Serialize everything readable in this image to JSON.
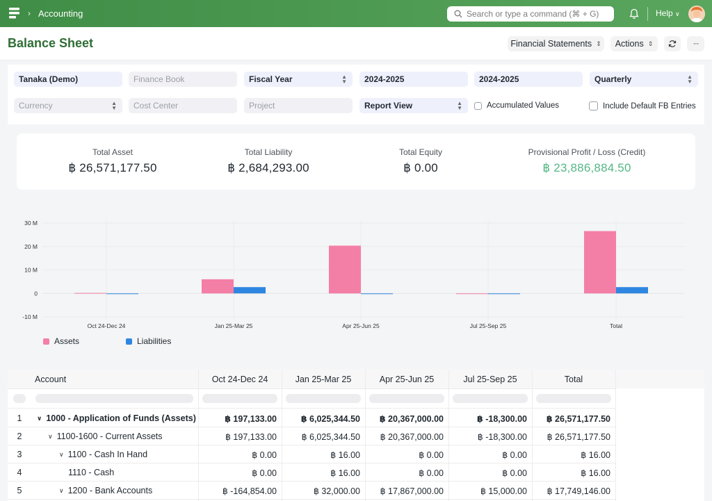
{
  "navbar": {
    "breadcrumb": "Accounting",
    "search_placeholder": "Search or type a command (⌘ + G)",
    "help_label": "Help"
  },
  "header": {
    "title": "Balance Sheet",
    "financial_statements_label": "Financial Statements",
    "actions_label": "Actions",
    "more_label": "···"
  },
  "filters": {
    "company": "Tanaka (Demo)",
    "finance_book_placeholder": "Finance Book",
    "fiscal_year": "Fiscal Year",
    "from_fiscal_year": "2024-2025",
    "to_fiscal_year": "2024-2025",
    "periodicity": "Quarterly",
    "currency_placeholder": "Currency",
    "cost_center_placeholder": "Cost Center",
    "project_placeholder": "Project",
    "report_view": "Report View",
    "accumulated_values_label": "Accumulated Values",
    "include_default_fb_label": "Include Default FB Entries"
  },
  "summary": [
    {
      "label": "Total Asset",
      "value": "฿ 26,571,177.50"
    },
    {
      "label": "Total Liability",
      "value": "฿ 2,684,293.00"
    },
    {
      "label": "Total Equity",
      "value": "฿ 0.00"
    },
    {
      "label": "Provisional Profit / Loss (Credit)",
      "value": "฿ 23,886,884.50"
    }
  ],
  "colors": {
    "assets": "#f47fa6",
    "liabilities": "#2f86e0",
    "accent_green": "#56b787"
  },
  "chart_data": {
    "type": "bar",
    "categories": [
      "Oct 24-Dec 24",
      "Jan 25-Mar 25",
      "Apr 25-Jun 25",
      "Jul 25-Sep 25",
      "Total"
    ],
    "series": [
      {
        "name": "Assets",
        "values": [
          0.197133,
          6.0253445,
          20.367,
          -0.0183,
          26.5711775
        ]
      },
      {
        "name": "Liabilities",
        "values": [
          0.0,
          2.684293,
          0.0,
          0.0,
          2.684293
        ]
      }
    ],
    "y_ticks": [
      "30 M",
      "20 M",
      "10 M",
      "0",
      "-10 M"
    ],
    "ylim": [
      -10,
      30
    ],
    "y_unit": "M",
    "legend_position": "bottom-left",
    "grid": true
  },
  "table": {
    "columns": [
      "Account",
      "Oct 24-Dec 24",
      "Jan 25-Mar 25",
      "Apr 25-Jun 25",
      "Jul 25-Sep 25",
      "Total"
    ],
    "rows": [
      {
        "num": "1",
        "account": "1000 - Application of Funds (Assets)",
        "level": 0,
        "bold": true,
        "values": [
          "฿ 197,133.00",
          "฿ 6,025,344.50",
          "฿ 20,367,000.00",
          "฿ -18,300.00",
          "฿ 26,571,177.50"
        ]
      },
      {
        "num": "2",
        "account": "1100-1600 - Current Assets",
        "level": 1,
        "bold": false,
        "values": [
          "฿ 197,133.00",
          "฿ 6,025,344.50",
          "฿ 20,367,000.00",
          "฿ -18,300.00",
          "฿ 26,571,177.50"
        ]
      },
      {
        "num": "3",
        "account": "1100 - Cash In Hand",
        "level": 2,
        "bold": false,
        "values": [
          "฿ 0.00",
          "฿ 16.00",
          "฿ 0.00",
          "฿ 0.00",
          "฿ 16.00"
        ]
      },
      {
        "num": "4",
        "account": "1110 - Cash",
        "level": 3,
        "bold": false,
        "values": [
          "฿ 0.00",
          "฿ 16.00",
          "฿ 0.00",
          "฿ 0.00",
          "฿ 16.00"
        ]
      },
      {
        "num": "5",
        "account": "1200 - Bank Accounts",
        "level": 2,
        "bold": false,
        "values": [
          "฿ -164,854.00",
          "฿ 32,000.00",
          "฿ 17,867,000.00",
          "฿ 15,000.00",
          "฿ 17,749,146.00"
        ]
      }
    ]
  }
}
